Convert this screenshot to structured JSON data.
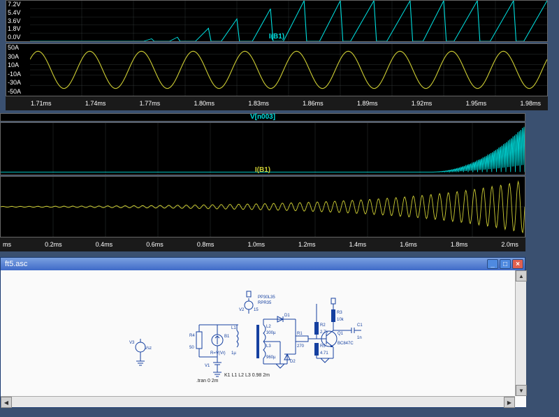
{
  "top_scope": {
    "panel1": {
      "y_ticks": [
        "7.2V",
        "5.4V",
        "3.6V",
        "1.8V",
        "0.0V"
      ],
      "trace_label": "I(B1)",
      "trace_color": "#00dddd",
      "waveform": {
        "type": "ramp-pulses",
        "points": [
          [
            0.0,
            0.0
          ],
          [
            0.1,
            0.0
          ],
          [
            0.1,
            0.0
          ],
          [
            0.22,
            0.0
          ],
          [
            0.235,
            0.06
          ],
          [
            0.24,
            0.0
          ],
          [
            0.27,
            0.0
          ],
          [
            0.285,
            0.1
          ],
          [
            0.29,
            0.0
          ],
          [
            0.32,
            0.0
          ],
          [
            0.345,
            0.32
          ],
          [
            0.35,
            0.0
          ],
          [
            0.37,
            0.0
          ],
          [
            0.4,
            0.55
          ],
          [
            0.405,
            0.0
          ],
          [
            0.43,
            0.0
          ],
          [
            0.465,
            0.8
          ],
          [
            0.47,
            0.0
          ],
          [
            0.49,
            0.0
          ],
          [
            0.53,
            1.0
          ],
          [
            0.535,
            0.0
          ],
          [
            0.56,
            0.0
          ],
          [
            0.6,
            1.0
          ],
          [
            0.605,
            0.0
          ],
          [
            0.62,
            0.0
          ],
          [
            0.665,
            1.0
          ],
          [
            0.67,
            0.0
          ],
          [
            0.69,
            0.0
          ],
          [
            0.735,
            1.0
          ],
          [
            0.74,
            0.0
          ],
          [
            0.76,
            0.0
          ],
          [
            0.8,
            1.0
          ],
          [
            0.805,
            0.0
          ],
          [
            0.82,
            0.0
          ],
          [
            0.865,
            1.0
          ],
          [
            0.87,
            0.0
          ],
          [
            0.89,
            0.0
          ],
          [
            0.935,
            1.0
          ],
          [
            0.94,
            0.0
          ],
          [
            0.955,
            0.0
          ],
          [
            1.0,
            1.0
          ]
        ]
      }
    },
    "panel2": {
      "y_ticks": [
        "50A",
        "30A",
        "10A",
        "-10A",
        "-30A",
        "-50A"
      ],
      "trace_color": "#cccc33",
      "waveform": {
        "type": "sine",
        "cycles": 10,
        "amplitude": 0.72
      }
    },
    "x_ticks": [
      "1.71ms",
      "1.74ms",
      "1.77ms",
      "1.80ms",
      "1.83ms",
      "1.86ms",
      "1.89ms",
      "1.92ms",
      "1.95ms",
      "1.98ms"
    ]
  },
  "mid_scope": {
    "panel1": {
      "trace_label": "V[n003]",
      "trace_color": "#00dddd",
      "waveform": {
        "type": "growing-burst",
        "start": 0.82,
        "cycles": 30
      }
    },
    "panel2": {
      "trace_label": "I(B1)",
      "trace_color": "#cccc33",
      "waveform": {
        "type": "exp-growing-sine",
        "cycles": 60
      }
    },
    "x_ticks": [
      "ms",
      "0.2ms",
      "0.4ms",
      "0.6ms",
      "0.8ms",
      "1.0ms",
      "1.2ms",
      "1.4ms",
      "1.6ms",
      "1.8ms",
      "2.0ms"
    ]
  },
  "schematic": {
    "title": "ft5.asc",
    "directive": ".tran 0 2m",
    "k": "K1 L1 L2 L3 0.98 2m",
    "components": {
      "V3": {
        "label": "V3",
        "val": "Vsz"
      },
      "V2": {
        "label": "V2",
        "val": "15"
      },
      "V1": {
        "label": "V1"
      },
      "B1": {
        "label": "B1",
        "val": "R=V(Vr)"
      },
      "R4": {
        "label": "R4",
        "val": "50"
      },
      "L1": {
        "label": "L1",
        "val": "1µ"
      },
      "L2": {
        "label": "L2",
        "val": "300µ"
      },
      "L3": {
        "label": "L3",
        "val": "960µ"
      },
      "D1": {
        "label": "D1"
      },
      "D2": {
        "label": "D2"
      },
      "R1": {
        "label": "R1",
        "val": "270"
      },
      "R2": {
        "label": "R2",
        "val": "2.7k"
      },
      "R3": {
        "label": "R3",
        "val": "10k"
      },
      "R5": {
        "label": "R5",
        "val": "4.71"
      },
      "Q1": {
        "label": "Q1",
        "val": "BC847C"
      },
      "C1": {
        "label": "C1",
        "val": "1n"
      },
      "PP": {
        "label": "PP30L35"
      },
      "RPR": {
        "label": "RPR35"
      }
    }
  },
  "colors": {
    "scope_bg": "#000000",
    "grid": "#404848",
    "cyan": "#00dddd",
    "yellow": "#cccc33",
    "schematic_bg": "#fafafa",
    "wire": "#1540a0"
  }
}
